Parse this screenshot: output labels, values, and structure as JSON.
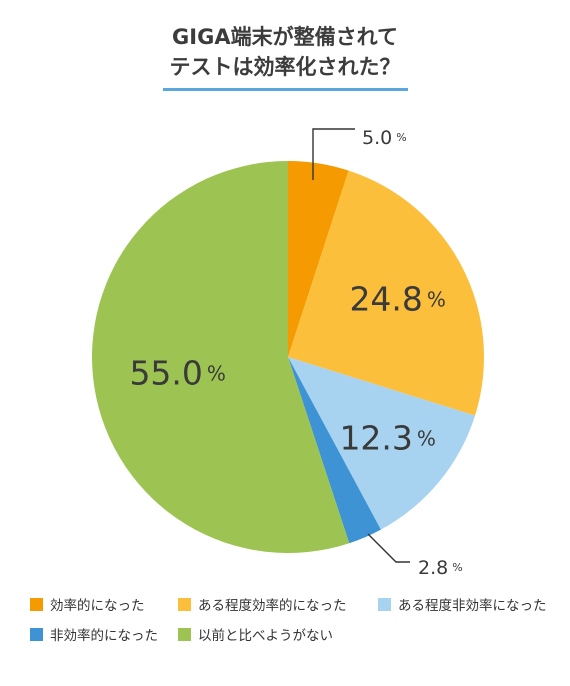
{
  "title": {
    "line1": "GIGA端末が整備されて",
    "line2": "テストは効率化された？"
  },
  "chart_data": {
    "type": "pie",
    "title": "GIGA端末が整備されて テストは効率化された？",
    "unit": "%",
    "slices": [
      {
        "name": "効率的になった",
        "value": 5.0,
        "label": "5.0",
        "color": "#f59a00"
      },
      {
        "name": "ある程度効率的になった",
        "value": 24.8,
        "label": "24.8",
        "color": "#fbbf3c"
      },
      {
        "name": "ある程度非効率になった",
        "value": 12.3,
        "label": "12.3",
        "color": "#a7d3f1"
      },
      {
        "name": "非効率的になった",
        "value": 2.8,
        "label": "2.8",
        "color": "#3d93d3"
      },
      {
        "name": "以前と比べようがない",
        "value": 55.0,
        "label": "55.0",
        "color": "#9dc452"
      }
    ],
    "start_angle_deg": 0,
    "direction": "clockwise",
    "legend_position": "bottom"
  }
}
